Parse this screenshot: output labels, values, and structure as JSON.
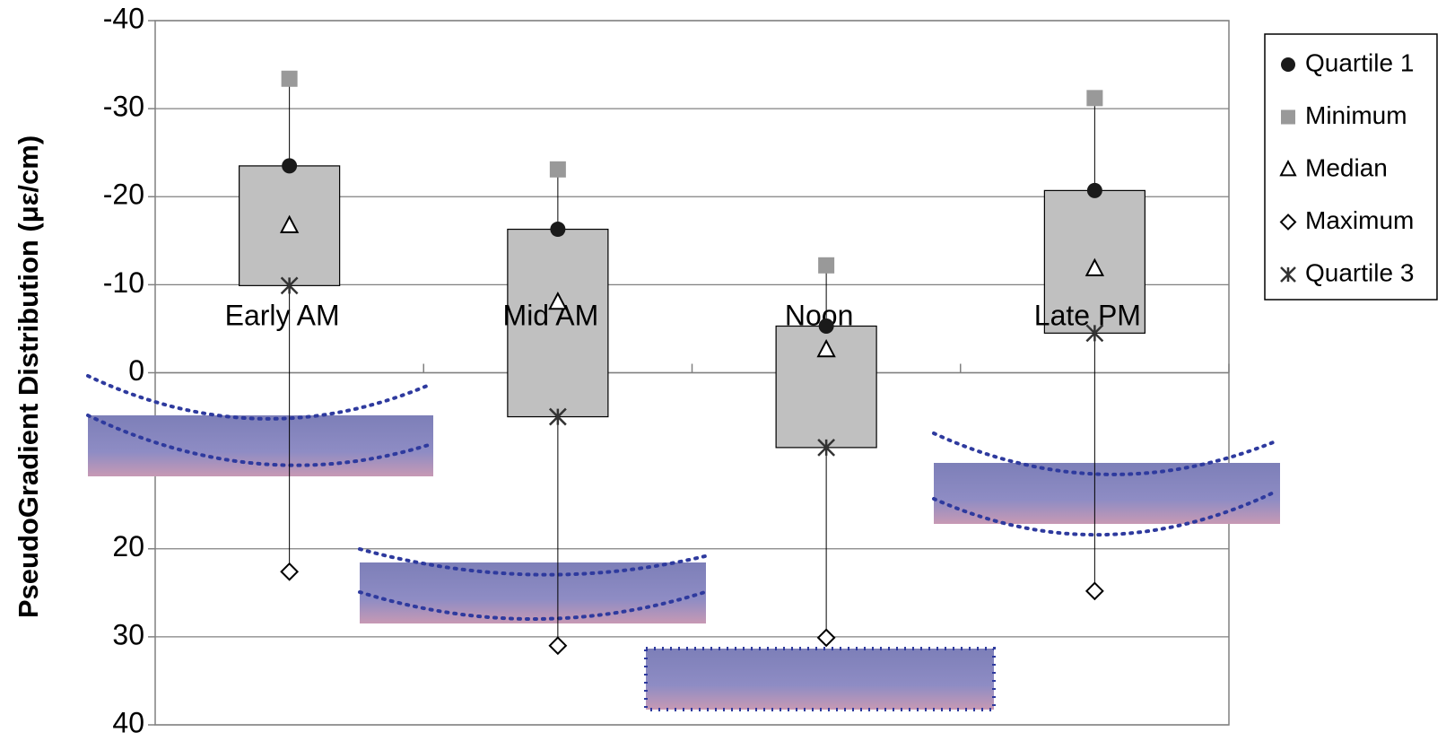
{
  "chart_data": {
    "type": "box",
    "y_label": "PseudoGradient Distribution (με/cm)",
    "categories": [
      "Early AM",
      "Mid AM",
      "Noon",
      "Late PM"
    ],
    "ylim": [
      40,
      -40
    ],
    "yticks": [
      -40,
      -30,
      -20,
      -10,
      0,
      20,
      30,
      40
    ],
    "grid": true,
    "box_color": "#c0c0c0",
    "series": [
      {
        "name": "Quartile 1",
        "color": "#1a1a1a",
        "marker": "circle",
        "values": [
          -23.5,
          -16.3,
          -5.3,
          -20.7
        ]
      },
      {
        "name": "Minimum",
        "color": "#999999",
        "marker": "square",
        "values": [
          -33.4,
          -23.1,
          -12.2,
          -31.2
        ]
      },
      {
        "name": "Median",
        "color": "#000000",
        "marker": "triangle",
        "values": [
          -16.7,
          -8.0,
          -2.6,
          -11.8
        ]
      },
      {
        "name": "Maximum",
        "color": "#000000",
        "marker": "diamond",
        "values": [
          22.6,
          31.0,
          30.1,
          24.8
        ]
      },
      {
        "name": "Quartile 3",
        "color": "#333333",
        "marker": "asterisk",
        "values": [
          -9.9,
          5.0,
          8.5,
          -4.5
        ]
      }
    ]
  }
}
